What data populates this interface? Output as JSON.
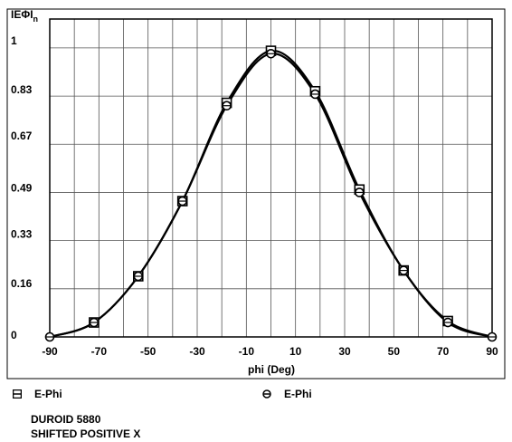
{
  "chart_data": {
    "type": "line",
    "title": "",
    "ylabel": "IEΦIn",
    "xlabel": "phi (Deg)",
    "x_ticks": [
      -90,
      -70,
      -50,
      -30,
      -10,
      10,
      30,
      50,
      70,
      90
    ],
    "y_ticks": [
      0,
      0.16,
      0.33,
      0.49,
      0.67,
      0.83,
      1
    ],
    "xlim": [
      -90,
      90
    ],
    "ylim": [
      0,
      1.1
    ],
    "grid": true,
    "legend_position": "bottom",
    "series": [
      {
        "name": "E-Phi",
        "marker": "square",
        "x": [
          -90,
          -72,
          -54,
          -36,
          -18,
          0,
          18,
          36,
          54,
          72,
          90
        ],
        "y": [
          0.0,
          0.05,
          0.21,
          0.47,
          0.81,
          0.99,
          0.85,
          0.51,
          0.23,
          0.055,
          0.0
        ],
        "markers_x": [
          -72,
          -54,
          -36,
          -18,
          0,
          18,
          36,
          54,
          72
        ],
        "markers_y": [
          0.05,
          0.21,
          0.47,
          0.81,
          0.99,
          0.85,
          0.51,
          0.23,
          0.055
        ]
      },
      {
        "name": "E-Phi",
        "marker": "circle",
        "x": [
          -90,
          -72,
          -54,
          -36,
          -18,
          0,
          18,
          36,
          54,
          72,
          90
        ],
        "y": [
          0.0,
          0.05,
          0.21,
          0.47,
          0.8,
          0.98,
          0.84,
          0.5,
          0.23,
          0.05,
          0.0
        ],
        "markers_x": [
          -90,
          -72,
          -54,
          -36,
          -18,
          0,
          18,
          36,
          54,
          72,
          90
        ],
        "markers_y": [
          0.0,
          0.05,
          0.21,
          0.47,
          0.8,
          0.98,
          0.84,
          0.5,
          0.23,
          0.05,
          0.0
        ]
      }
    ]
  },
  "notes": [
    "DUROID 5880",
    "SHIFTED POSITIVE X"
  ],
  "colors": {
    "line": "#000000",
    "grid": "#555555",
    "background": "#ffffff"
  }
}
